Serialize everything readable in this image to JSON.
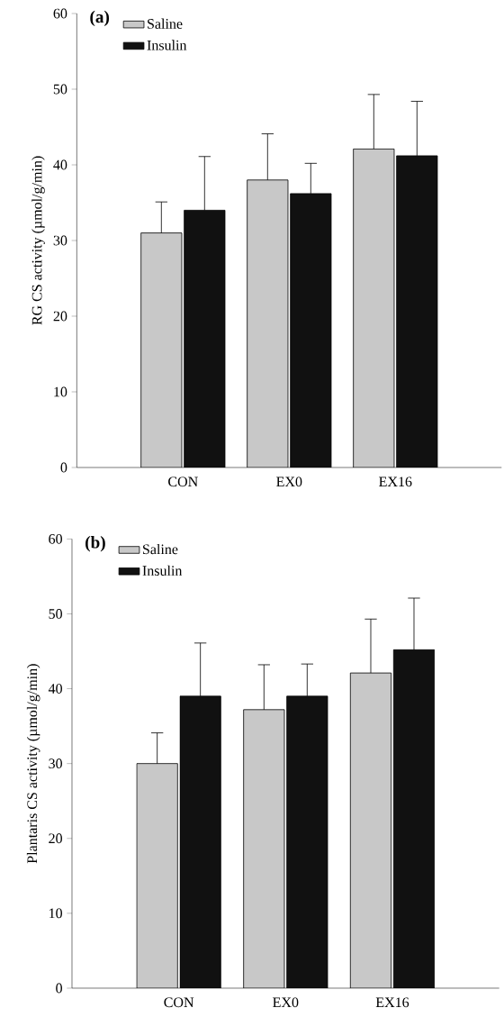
{
  "chart_data": [
    {
      "type": "bar",
      "title": "(a)",
      "ylabel": "RG CS activity (µmol/g/min)",
      "categories": [
        "CON",
        "EX0",
        "EX16"
      ],
      "series": [
        {
          "name": "Saline",
          "color": "#c8c8c8",
          "values": [
            31,
            38,
            42.1
          ],
          "errors": [
            [
              31,
              35.1
            ],
            [
              38,
              44.1
            ],
            [
              42.1,
              49.3
            ]
          ]
        },
        {
          "name": "Insulin",
          "color": "#111111",
          "values": [
            34,
            36.2,
            41.2
          ],
          "errors": [
            [
              34,
              41.1
            ],
            [
              36.2,
              40.2
            ],
            [
              41.2,
              48.4
            ]
          ]
        }
      ],
      "ylim": [
        0,
        60
      ],
      "yticks": [
        0,
        10,
        20,
        30,
        40,
        50,
        60
      ],
      "legend": "top left"
    },
    {
      "type": "bar",
      "title": "(b)",
      "ylabel": "Plantaris CS activity (µmol/g/min)",
      "categories": [
        "CON",
        "EX0",
        "EX16"
      ],
      "series": [
        {
          "name": "Saline",
          "color": "#c8c8c8",
          "values": [
            30,
            37.2,
            42.1
          ],
          "errors": [
            [
              30,
              34.1
            ],
            [
              37.2,
              43.2
            ],
            [
              42.1,
              49.3
            ]
          ]
        },
        {
          "name": "Insulin",
          "color": "#111111",
          "values": [
            39,
            39,
            45.2
          ],
          "errors": [
            [
              39,
              46.1
            ],
            [
              39,
              43.3
            ],
            [
              45.2,
              52.1
            ]
          ]
        }
      ],
      "ylim": [
        0,
        60
      ],
      "yticks": [
        0,
        10,
        20,
        30,
        40,
        50,
        60
      ],
      "legend": "top left"
    }
  ]
}
